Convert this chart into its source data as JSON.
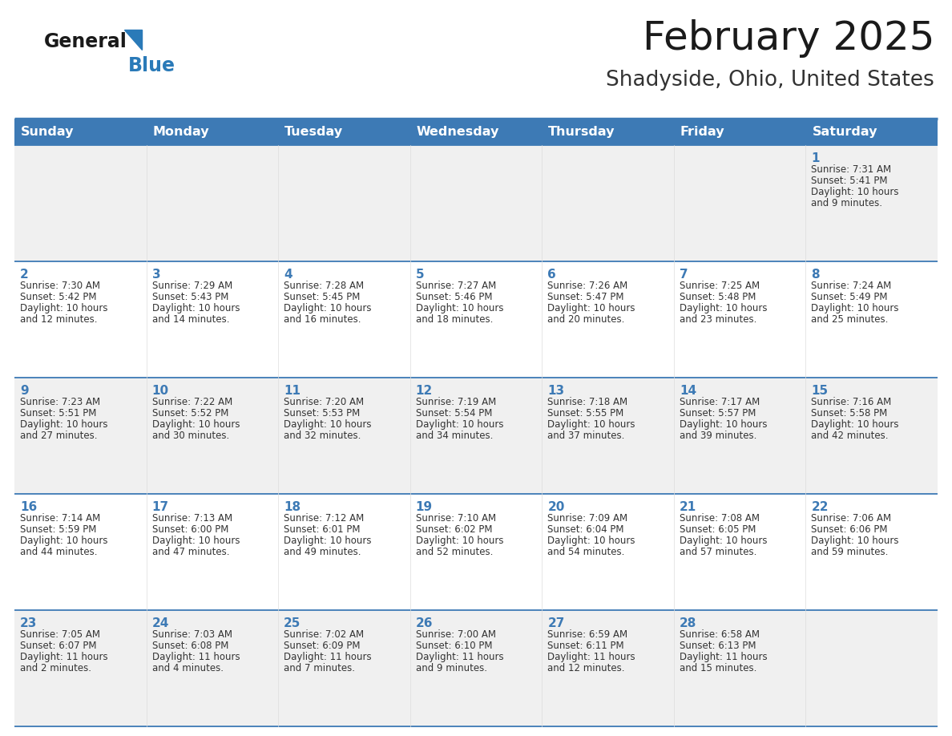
{
  "title": "February 2025",
  "subtitle": "Shadyside, Ohio, United States",
  "header_bg": "#3d7ab5",
  "header_text": "#ffffff",
  "row_bg_light": "#f0f0f0",
  "row_bg_white": "#ffffff",
  "border_color": "#3d7ab5",
  "row_divider_color": "#3d7ab5",
  "day_headers": [
    "Sunday",
    "Monday",
    "Tuesday",
    "Wednesday",
    "Thursday",
    "Friday",
    "Saturday"
  ],
  "title_color": "#1a1a1a",
  "subtitle_color": "#333333",
  "day_num_color": "#3d7ab5",
  "cell_text_color": "#333333",
  "logo_general_color": "#1a1a1a",
  "logo_blue_color": "#2a7ab8",
  "logo_triangle_color": "#2a7ab8",
  "calendar_data": [
    [
      null,
      null,
      null,
      null,
      null,
      null,
      {
        "day": "1",
        "sunrise": "7:31 AM",
        "sunset": "5:41 PM",
        "daylight1": "10 hours",
        "daylight2": "and 9 minutes."
      }
    ],
    [
      {
        "day": "2",
        "sunrise": "7:30 AM",
        "sunset": "5:42 PM",
        "daylight1": "10 hours",
        "daylight2": "and 12 minutes."
      },
      {
        "day": "3",
        "sunrise": "7:29 AM",
        "sunset": "5:43 PM",
        "daylight1": "10 hours",
        "daylight2": "and 14 minutes."
      },
      {
        "day": "4",
        "sunrise": "7:28 AM",
        "sunset": "5:45 PM",
        "daylight1": "10 hours",
        "daylight2": "and 16 minutes."
      },
      {
        "day": "5",
        "sunrise": "7:27 AM",
        "sunset": "5:46 PM",
        "daylight1": "10 hours",
        "daylight2": "and 18 minutes."
      },
      {
        "day": "6",
        "sunrise": "7:26 AM",
        "sunset": "5:47 PM",
        "daylight1": "10 hours",
        "daylight2": "and 20 minutes."
      },
      {
        "day": "7",
        "sunrise": "7:25 AM",
        "sunset": "5:48 PM",
        "daylight1": "10 hours",
        "daylight2": "and 23 minutes."
      },
      {
        "day": "8",
        "sunrise": "7:24 AM",
        "sunset": "5:49 PM",
        "daylight1": "10 hours",
        "daylight2": "and 25 minutes."
      }
    ],
    [
      {
        "day": "9",
        "sunrise": "7:23 AM",
        "sunset": "5:51 PM",
        "daylight1": "10 hours",
        "daylight2": "and 27 minutes."
      },
      {
        "day": "10",
        "sunrise": "7:22 AM",
        "sunset": "5:52 PM",
        "daylight1": "10 hours",
        "daylight2": "and 30 minutes."
      },
      {
        "day": "11",
        "sunrise": "7:20 AM",
        "sunset": "5:53 PM",
        "daylight1": "10 hours",
        "daylight2": "and 32 minutes."
      },
      {
        "day": "12",
        "sunrise": "7:19 AM",
        "sunset": "5:54 PM",
        "daylight1": "10 hours",
        "daylight2": "and 34 minutes."
      },
      {
        "day": "13",
        "sunrise": "7:18 AM",
        "sunset": "5:55 PM",
        "daylight1": "10 hours",
        "daylight2": "and 37 minutes."
      },
      {
        "day": "14",
        "sunrise": "7:17 AM",
        "sunset": "5:57 PM",
        "daylight1": "10 hours",
        "daylight2": "and 39 minutes."
      },
      {
        "day": "15",
        "sunrise": "7:16 AM",
        "sunset": "5:58 PM",
        "daylight1": "10 hours",
        "daylight2": "and 42 minutes."
      }
    ],
    [
      {
        "day": "16",
        "sunrise": "7:14 AM",
        "sunset": "5:59 PM",
        "daylight1": "10 hours",
        "daylight2": "and 44 minutes."
      },
      {
        "day": "17",
        "sunrise": "7:13 AM",
        "sunset": "6:00 PM",
        "daylight1": "10 hours",
        "daylight2": "and 47 minutes."
      },
      {
        "day": "18",
        "sunrise": "7:12 AM",
        "sunset": "6:01 PM",
        "daylight1": "10 hours",
        "daylight2": "and 49 minutes."
      },
      {
        "day": "19",
        "sunrise": "7:10 AM",
        "sunset": "6:02 PM",
        "daylight1": "10 hours",
        "daylight2": "and 52 minutes."
      },
      {
        "day": "20",
        "sunrise": "7:09 AM",
        "sunset": "6:04 PM",
        "daylight1": "10 hours",
        "daylight2": "and 54 minutes."
      },
      {
        "day": "21",
        "sunrise": "7:08 AM",
        "sunset": "6:05 PM",
        "daylight1": "10 hours",
        "daylight2": "and 57 minutes."
      },
      {
        "day": "22",
        "sunrise": "7:06 AM",
        "sunset": "6:06 PM",
        "daylight1": "10 hours",
        "daylight2": "and 59 minutes."
      }
    ],
    [
      {
        "day": "23",
        "sunrise": "7:05 AM",
        "sunset": "6:07 PM",
        "daylight1": "11 hours",
        "daylight2": "and 2 minutes."
      },
      {
        "day": "24",
        "sunrise": "7:03 AM",
        "sunset": "6:08 PM",
        "daylight1": "11 hours",
        "daylight2": "and 4 minutes."
      },
      {
        "day": "25",
        "sunrise": "7:02 AM",
        "sunset": "6:09 PM",
        "daylight1": "11 hours",
        "daylight2": "and 7 minutes."
      },
      {
        "day": "26",
        "sunrise": "7:00 AM",
        "sunset": "6:10 PM",
        "daylight1": "11 hours",
        "daylight2": "and 9 minutes."
      },
      {
        "day": "27",
        "sunrise": "6:59 AM",
        "sunset": "6:11 PM",
        "daylight1": "11 hours",
        "daylight2": "and 12 minutes."
      },
      {
        "day": "28",
        "sunrise": "6:58 AM",
        "sunset": "6:13 PM",
        "daylight1": "11 hours",
        "daylight2": "and 15 minutes."
      },
      null
    ]
  ]
}
